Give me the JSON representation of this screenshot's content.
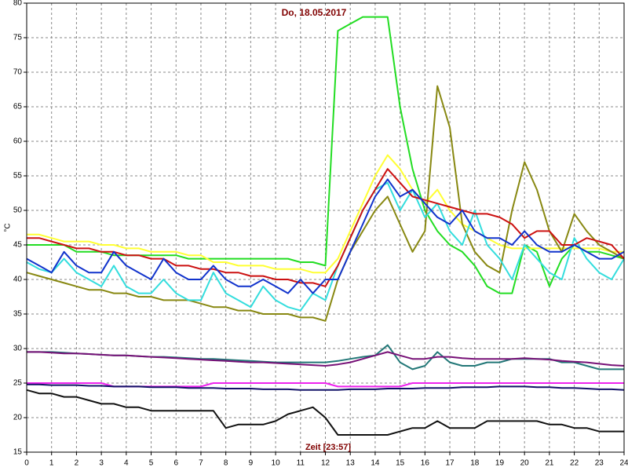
{
  "chart_data": {
    "type": "line",
    "title": "Do, 18.05.2017",
    "y_label": "°C",
    "x_label": "Zeit [23:57]",
    "grid": true,
    "xlim": [
      0,
      24
    ],
    "xticks": [
      0,
      1,
      2,
      3,
      4,
      5,
      6,
      7,
      8,
      9,
      10,
      11,
      12,
      13,
      14,
      15,
      16,
      17,
      18,
      19,
      20,
      21,
      22,
      23,
      24
    ],
    "ylim": [
      15,
      80
    ],
    "yticks": [
      15,
      20,
      25,
      30,
      35,
      40,
      45,
      50,
      55,
      60,
      65,
      70,
      75,
      80
    ],
    "x": [
      0,
      0.5,
      1,
      1.5,
      2,
      2.5,
      3,
      3.5,
      4,
      4.5,
      5,
      5.5,
      6,
      6.5,
      7,
      7.5,
      8,
      8.5,
      9,
      9.5,
      10,
      10.5,
      11,
      11.5,
      12,
      12.5,
      13,
      13.5,
      14,
      14.5,
      15,
      15.5,
      16,
      16.5,
      17,
      17.5,
      18,
      18.5,
      19,
      19.5,
      20,
      20.5,
      21,
      21.5,
      22,
      22.5,
      23,
      23.5,
      24
    ],
    "series": [
      {
        "color": "#22dd22",
        "values": [
          45,
          45,
          45,
          45,
          44,
          44,
          44,
          43.5,
          43.5,
          43.5,
          43.5,
          43.5,
          43.5,
          43,
          43,
          43,
          43,
          43,
          43,
          43,
          43,
          43,
          42.5,
          42.5,
          42,
          76,
          77,
          78,
          78,
          78,
          65,
          56,
          50,
          47,
          45,
          44,
          42,
          39,
          38,
          38,
          45,
          44,
          39,
          43,
          45,
          44,
          44,
          43.5,
          43
        ]
      },
      {
        "color": "#ffff33",
        "values": [
          46.5,
          46.5,
          46,
          45.5,
          45.5,
          45.5,
          45,
          45,
          44.5,
          44.5,
          44,
          44,
          44,
          43.5,
          43.5,
          42.5,
          42.5,
          42,
          42,
          42,
          41.5,
          41.5,
          41.5,
          41,
          41,
          43,
          47,
          51,
          55,
          58,
          56,
          53,
          51,
          53,
          50,
          48,
          47,
          46,
          45,
          44.5,
          44.5,
          44.5,
          44.5,
          44.5,
          44.5,
          44.5,
          44.5,
          44,
          44
        ]
      },
      {
        "color": "#888811",
        "values": [
          41,
          40.5,
          40,
          39.5,
          39,
          38.5,
          38.5,
          38,
          38,
          37.5,
          37.5,
          37,
          37,
          37,
          36.5,
          36,
          36,
          35.5,
          35.5,
          35,
          35,
          35,
          34.5,
          34.5,
          34,
          40,
          44,
          47,
          50,
          52,
          48,
          44,
          47,
          68,
          62,
          48,
          44,
          42,
          41,
          50,
          57,
          53,
          47,
          44,
          49.5,
          47,
          45,
          44,
          43
        ]
      },
      {
        "color": "#33dddd",
        "values": [
          42.5,
          41.5,
          41,
          43,
          41,
          40,
          39,
          42,
          39,
          38,
          38,
          40,
          38,
          37,
          37,
          41,
          38,
          37,
          36,
          39,
          37,
          36,
          35.5,
          38,
          37,
          42,
          46,
          50,
          53,
          54,
          50,
          53,
          49,
          51,
          47,
          45,
          50,
          45,
          43,
          40,
          45,
          43,
          41,
          40,
          46,
          43,
          41,
          40,
          43
        ]
      },
      {
        "color": "#cc1111",
        "values": [
          46,
          46,
          45.5,
          45,
          44.5,
          44.5,
          44,
          44,
          43.5,
          43.5,
          43,
          43,
          42,
          42,
          41.5,
          41.5,
          41,
          41,
          40.5,
          40.5,
          40,
          40,
          39.5,
          39.5,
          39,
          42,
          46,
          50,
          53,
          56,
          54,
          52,
          51.5,
          51,
          50.5,
          50,
          49.5,
          49.5,
          49,
          48,
          46,
          47,
          47,
          45,
          45,
          46,
          45.5,
          45,
          43
        ]
      },
      {
        "color": "#1133cc",
        "values": [
          43,
          42,
          41,
          44,
          42,
          41,
          41,
          44,
          42,
          41,
          40,
          43,
          41,
          40,
          40,
          42,
          40,
          39,
          39,
          40,
          39,
          38,
          40,
          38,
          40,
          40,
          44,
          48,
          52,
          54.5,
          52,
          53,
          51,
          49,
          48,
          50,
          47,
          46,
          46,
          45,
          47,
          45,
          44,
          44,
          45,
          44,
          43,
          43,
          44
        ]
      },
      {
        "color": "#227777",
        "values": [
          29.5,
          29.5,
          29.5,
          29.4,
          29.3,
          29.2,
          29.1,
          29,
          29,
          28.9,
          28.8,
          28.8,
          28.7,
          28.6,
          28.5,
          28.5,
          28.4,
          28.3,
          28.2,
          28.1,
          28,
          28,
          28,
          28,
          28,
          28.2,
          28.5,
          28.8,
          29,
          30.5,
          28,
          27,
          27.5,
          29.5,
          28,
          27.5,
          27.5,
          28,
          28,
          28.5,
          28.5,
          28.5,
          28.5,
          28,
          28,
          27.5,
          27,
          27,
          27
        ]
      },
      {
        "color": "#771177",
        "values": [
          29.5,
          29.5,
          29.4,
          29.3,
          29.3,
          29.2,
          29.1,
          29,
          29,
          28.9,
          28.8,
          28.7,
          28.6,
          28.5,
          28.4,
          28.3,
          28.2,
          28.1,
          28,
          28,
          27.9,
          27.8,
          27.7,
          27.6,
          27.5,
          27.7,
          28,
          28.5,
          29,
          29.5,
          29,
          28.5,
          28.5,
          28.8,
          28.8,
          28.6,
          28.5,
          28.5,
          28.5,
          28.5,
          28.6,
          28.5,
          28.4,
          28.2,
          28.1,
          28,
          27.8,
          27.6,
          27.5
        ]
      },
      {
        "color": "#ee22ee",
        "values": [
          25,
          25,
          25,
          25,
          25,
          25,
          25,
          24.5,
          24.5,
          24.5,
          24.5,
          24.5,
          24.5,
          24.5,
          24.5,
          25,
          25,
          25,
          25,
          25,
          25,
          25,
          25,
          25,
          25,
          24.5,
          24.5,
          24.5,
          24.5,
          24.5,
          24.5,
          25,
          25,
          25,
          25,
          25,
          25,
          25,
          25,
          25,
          25,
          25,
          25,
          25,
          25,
          25,
          25,
          25,
          25
        ]
      },
      {
        "color": "#111166",
        "values": [
          24.8,
          24.8,
          24.7,
          24.7,
          24.7,
          24.6,
          24.6,
          24.5,
          24.5,
          24.5,
          24.4,
          24.4,
          24.4,
          24.3,
          24.3,
          24.3,
          24.2,
          24.2,
          24.2,
          24.1,
          24.1,
          24.1,
          24,
          24,
          24,
          24,
          24.1,
          24.1,
          24.1,
          24.2,
          24.2,
          24.2,
          24.3,
          24.3,
          24.3,
          24.4,
          24.4,
          24.4,
          24.5,
          24.5,
          24.5,
          24.4,
          24.4,
          24.3,
          24.3,
          24.2,
          24.1,
          24.1,
          24
        ]
      },
      {
        "color": "#111111",
        "values": [
          24,
          23.5,
          23.5,
          23,
          23,
          22.5,
          22,
          22,
          21.5,
          21.5,
          21,
          21,
          21,
          21,
          21,
          21,
          18.5,
          19,
          19,
          19,
          19.5,
          20.5,
          21,
          21.5,
          20,
          17.5,
          17.5,
          17.5,
          17.5,
          17.5,
          18,
          18.5,
          18.5,
          19.5,
          18.5,
          18.5,
          18.5,
          19.5,
          19.5,
          19.5,
          19.5,
          19.5,
          19,
          19,
          18.5,
          18.5,
          18,
          18,
          18
        ]
      }
    ]
  }
}
